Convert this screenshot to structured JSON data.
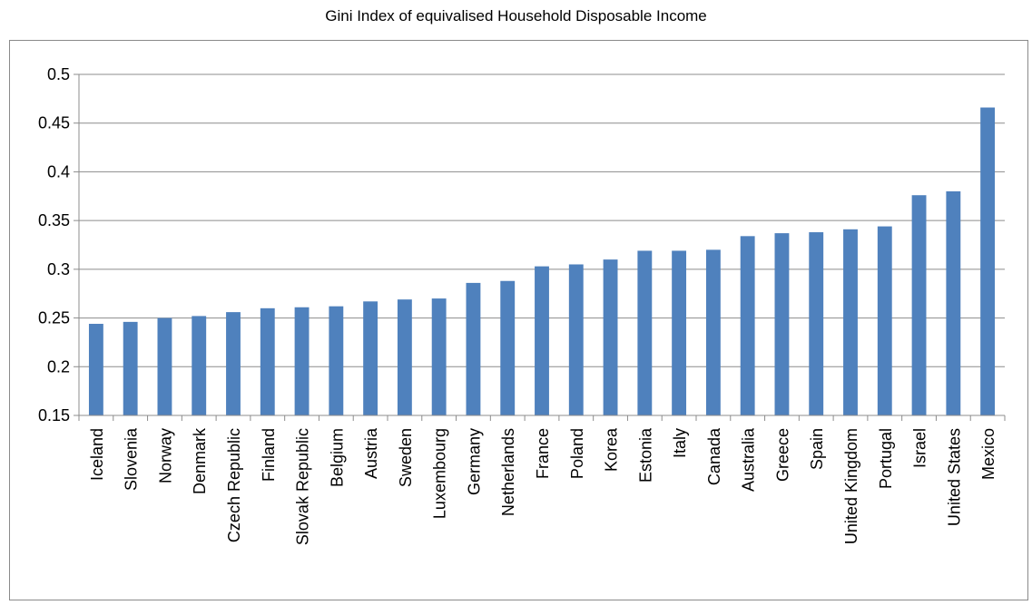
{
  "chart_data": {
    "type": "bar",
    "title": "Gini Index of equivalised Household Disposable Income",
    "xlabel": "",
    "ylabel": "",
    "ylim": [
      0.15,
      0.5
    ],
    "yticks": [
      "0.15",
      "0.2",
      "0.25",
      "0.3",
      "0.35",
      "0.4",
      "0.45",
      "0.5"
    ],
    "grid": true,
    "legend": "none",
    "bar_color": "#4F81BD",
    "categories": [
      "Iceland",
      "Slovenia",
      "Norway",
      "Denmark",
      "Czech Republic",
      "Finland",
      "Slovak Republic",
      "Belgium",
      "Austria",
      "Sweden",
      "Luxembourg",
      "Germany",
      "Netherlands",
      "France",
      "Poland",
      "Korea",
      "Estonia",
      "Italy",
      "Canada",
      "Australia",
      "Greece",
      "Spain",
      "United Kingdom",
      "Portugal",
      "Israel",
      "United States",
      "Mexico"
    ],
    "values": [
      0.244,
      0.246,
      0.25,
      0.252,
      0.256,
      0.26,
      0.261,
      0.262,
      0.267,
      0.269,
      0.27,
      0.286,
      0.288,
      0.303,
      0.305,
      0.31,
      0.319,
      0.319,
      0.32,
      0.334,
      0.337,
      0.338,
      0.341,
      0.344,
      0.376,
      0.38,
      0.466
    ]
  }
}
